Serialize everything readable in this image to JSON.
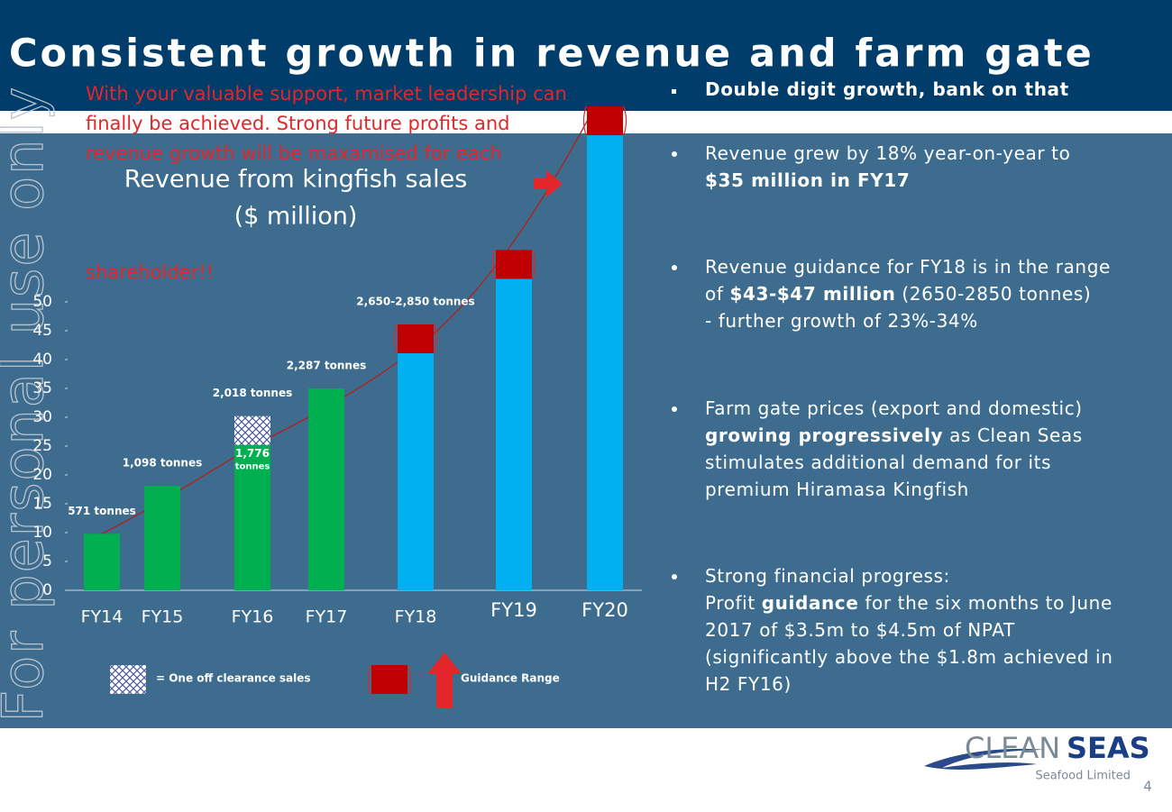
{
  "slide": {
    "title": "Consistent growth in revenue and farm gate",
    "overlay": [
      "With your valuable support, market leadership can",
      "finally be achieved.  Strong future profits and",
      "revenue growth will be maxamised for each",
      "shareholder!!"
    ],
    "watermark": "For personal use only",
    "bullets": [
      {
        "lines": [
          [
            {
              "bold": "Double digit growth, bank on that"
            }
          ]
        ]
      },
      {
        "lines": [
          [
            "Revenue grew by 18% year-on-year to"
          ],
          [
            {
              "bold": "$35 million in FY17"
            }
          ]
        ]
      },
      {
        "lines": [
          [
            "Revenue guidance for FY18 is in the range"
          ],
          [
            "of ",
            {
              "bold": "$43-$47 million"
            },
            " (2650-2850 tonnes)"
          ],
          [
            "- further growth of 23%-34%"
          ]
        ]
      },
      {
        "lines": [
          [
            "Farm gate prices (export and domestic)"
          ],
          [
            {
              "bold": "growing progressively"
            },
            " as Clean Seas"
          ],
          [
            "stimulates additional demand for its"
          ],
          [
            "premium Hiramasa Kingfish"
          ]
        ]
      },
      {
        "lines": [
          [
            "Strong financial progress:"
          ],
          [
            "Profit ",
            {
              "bold": "guidance"
            },
            " for the six months to June"
          ],
          [
            "2017 of $3.5m to $4.5m of NPAT"
          ],
          [
            "(significantly above the $1.8m achieved in"
          ],
          [
            "H2 FY16)"
          ]
        ]
      }
    ],
    "logo": {
      "clean": "CLEAN",
      "seas": "SEAS",
      "sub": "Seafood Limited"
    },
    "page_number": "4"
  },
  "chart_data": {
    "type": "bar",
    "title": [
      "Revenue from kingfish sales",
      "($ million)"
    ],
    "categories": [
      "FY14",
      "FY15",
      "FY16",
      "FY17",
      "FY18",
      "FY19",
      "FY20"
    ],
    "series": [
      {
        "colors": [
          "#00b050",
          "#00b050",
          "#00b050",
          "#00b050",
          "#00b0f0",
          "#00b0f0",
          "#00b0f0"
        ],
        "values": [
          9.8,
          18.1,
          25.2,
          35,
          41.1,
          54,
          78.9
        ]
      },
      {
        "name": "= One off clearance sales",
        "color": "#ffffff",
        "pattern": "hatch",
        "values": [
          null,
          null,
          5,
          null,
          null,
          null,
          null
        ]
      },
      {
        "name": "Guidance Range",
        "color": "#c00000",
        "values": [
          null,
          null,
          null,
          null,
          5,
          5,
          5
        ]
      }
    ],
    "bar_labels": [
      "571 tonnes",
      "1,098 tonnes",
      "2,018 tonnes",
      "2,287 tonnes",
      "2,650-2,850 tonnes",
      null,
      null
    ],
    "inner_labels": [
      null,
      null,
      [
        "1,776",
        "tonnes"
      ],
      null,
      null,
      null,
      null
    ],
    "ylim": [
      0,
      85
    ],
    "yticks": [
      0,
      5,
      10,
      15,
      20,
      25,
      30,
      35,
      40,
      45,
      50
    ]
  }
}
